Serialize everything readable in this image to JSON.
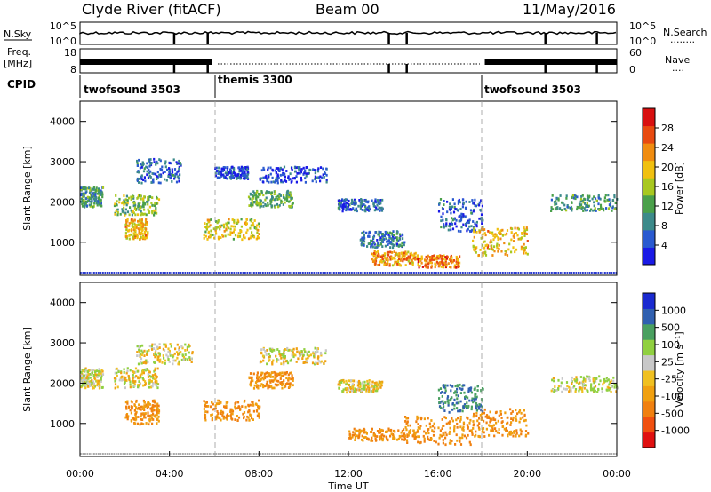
{
  "header": {
    "station": "Clyde River (fitACF)",
    "beam": "Beam 00",
    "date": "11/May/2016"
  },
  "status_panels": {
    "nsky": {
      "left_label": "N.Sky",
      "right_label": "N.Search",
      "right_dots": "........",
      "left_ticks": [
        "10^5",
        "10^0"
      ],
      "right_ticks": [
        "10^5",
        "10^0"
      ]
    },
    "freq": {
      "left_label_1": "Freq.",
      "left_label_2": "[MHz]",
      "right_label": "Nave",
      "right_dots": "....",
      "left_ticks": [
        "18",
        "8"
      ],
      "right_ticks": [
        "60",
        "0"
      ]
    }
  },
  "cpid": {
    "label": "CPID",
    "segments": [
      {
        "name": "twofsound 3503",
        "start_h": 0,
        "end_h": 6
      },
      {
        "name": "themis 3300",
        "start_h": 6,
        "end_h": 18
      },
      {
        "name": "twofsound 3503",
        "start_h": 18,
        "end_h": 24
      }
    ]
  },
  "chart_data": [
    {
      "type": "heatmap",
      "title": "",
      "xlabel": "",
      "ylabel": "Slant Range [km]",
      "x_range_h": [
        0,
        24
      ],
      "ylim": [
        180,
        4500
      ],
      "yticks": [
        1000,
        2000,
        3000,
        4000
      ],
      "colorbar": {
        "label": "Power [dB]",
        "ticks": [
          "4",
          "8",
          "12",
          "16",
          "20",
          "24",
          "28"
        ],
        "colors": [
          "#1a1ae6",
          "#2a5ad0",
          "#3c8a8a",
          "#4aa04a",
          "#a8c820",
          "#f0c010",
          "#f08c10",
          "#e84a10",
          "#d81010"
        ]
      },
      "regions": [
        {
          "t0": 0.0,
          "t1": 1.0,
          "r0": 1900,
          "r1": 2400,
          "v": 12
        },
        {
          "t0": 1.5,
          "t1": 3.5,
          "r0": 1700,
          "r1": 2200,
          "v": 16
        },
        {
          "t0": 2.0,
          "t1": 3.0,
          "r0": 1100,
          "r1": 1600,
          "v": 22
        },
        {
          "t0": 2.5,
          "t1": 4.5,
          "r0": 2500,
          "r1": 3100,
          "v": 8
        },
        {
          "t0": 5.5,
          "t1": 8.0,
          "r0": 1100,
          "r1": 1600,
          "v": 20
        },
        {
          "t0": 6.0,
          "t1": 7.5,
          "r0": 2600,
          "r1": 2900,
          "v": 6
        },
        {
          "t0": 7.5,
          "t1": 9.5,
          "r0": 1900,
          "r1": 2300,
          "v": 14
        },
        {
          "t0": 8.0,
          "t1": 11.0,
          "r0": 2500,
          "r1": 2900,
          "v": 6
        },
        {
          "t0": 11.5,
          "t1": 13.5,
          "r0": 1800,
          "r1": 2100,
          "v": 8
        },
        {
          "t0": 12.5,
          "t1": 14.5,
          "r0": 900,
          "r1": 1300,
          "v": 10
        },
        {
          "t0": 13.0,
          "t1": 15.0,
          "r0": 450,
          "r1": 800,
          "v": 24
        },
        {
          "t0": 15.0,
          "t1": 17.0,
          "r0": 400,
          "r1": 700,
          "v": 26
        },
        {
          "t0": 16.0,
          "t1": 18.0,
          "r0": 1300,
          "r1": 2100,
          "v": 8
        },
        {
          "t0": 17.5,
          "t1": 20.0,
          "r0": 700,
          "r1": 1400,
          "v": 22
        },
        {
          "t0": 21.0,
          "t1": 24.0,
          "r0": 1800,
          "r1": 2200,
          "v": 12
        }
      ]
    },
    {
      "type": "heatmap",
      "title": "",
      "xlabel": "Time UT",
      "ylabel": "Slant Range [km]",
      "x_range_h": [
        0,
        24
      ],
      "ylim": [
        180,
        4500
      ],
      "yticks": [
        1000,
        2000,
        3000,
        4000
      ],
      "xticks": [
        "00:00",
        "04:00",
        "08:00",
        "12:00",
        "16:00",
        "20:00",
        "00:00"
      ],
      "colorbar": {
        "label": "Velocity [m s⁻¹]",
        "ticks": [
          "-1000",
          "-500",
          "-100",
          "-25",
          "25",
          "100",
          "500",
          "1000"
        ],
        "colors": [
          "#e01010",
          "#f05010",
          "#f08010",
          "#f0a010",
          "#f0c020",
          "#c8c8c8",
          "#90d040",
          "#4aa060",
          "#3060b0",
          "#1a2ad0"
        ]
      },
      "regions": [
        {
          "t0": 0.0,
          "t1": 1.0,
          "r0": 1900,
          "r1": 2400,
          "v": 25
        },
        {
          "t0": 1.5,
          "t1": 3.5,
          "r0": 1900,
          "r1": 2400,
          "v": 0
        },
        {
          "t0": 2.0,
          "t1": 3.5,
          "r0": 1000,
          "r1": 1600,
          "v": -100
        },
        {
          "t0": 2.5,
          "t1": 5.0,
          "r0": 2500,
          "r1": 3000,
          "v": 0
        },
        {
          "t0": 5.5,
          "t1": 8.0,
          "r0": 1100,
          "r1": 1600,
          "v": -100
        },
        {
          "t0": 7.5,
          "t1": 9.5,
          "r0": 1900,
          "r1": 2300,
          "v": -100
        },
        {
          "t0": 8.0,
          "t1": 11.0,
          "r0": 2500,
          "r1": 2900,
          "v": 0
        },
        {
          "t0": 11.5,
          "t1": 13.5,
          "r0": 1800,
          "r1": 2100,
          "v": 0
        },
        {
          "t0": 12.0,
          "t1": 15.0,
          "r0": 600,
          "r1": 900,
          "v": -100
        },
        {
          "t0": 14.5,
          "t1": 17.5,
          "r0": 500,
          "r1": 1200,
          "v": -100
        },
        {
          "t0": 16.0,
          "t1": 18.0,
          "r0": 1300,
          "r1": 2000,
          "v": 500
        },
        {
          "t0": 17.5,
          "t1": 20.0,
          "r0": 700,
          "r1": 1400,
          "v": -100
        },
        {
          "t0": 21.0,
          "t1": 24.0,
          "r0": 1800,
          "r1": 2200,
          "v": 25
        }
      ]
    }
  ]
}
